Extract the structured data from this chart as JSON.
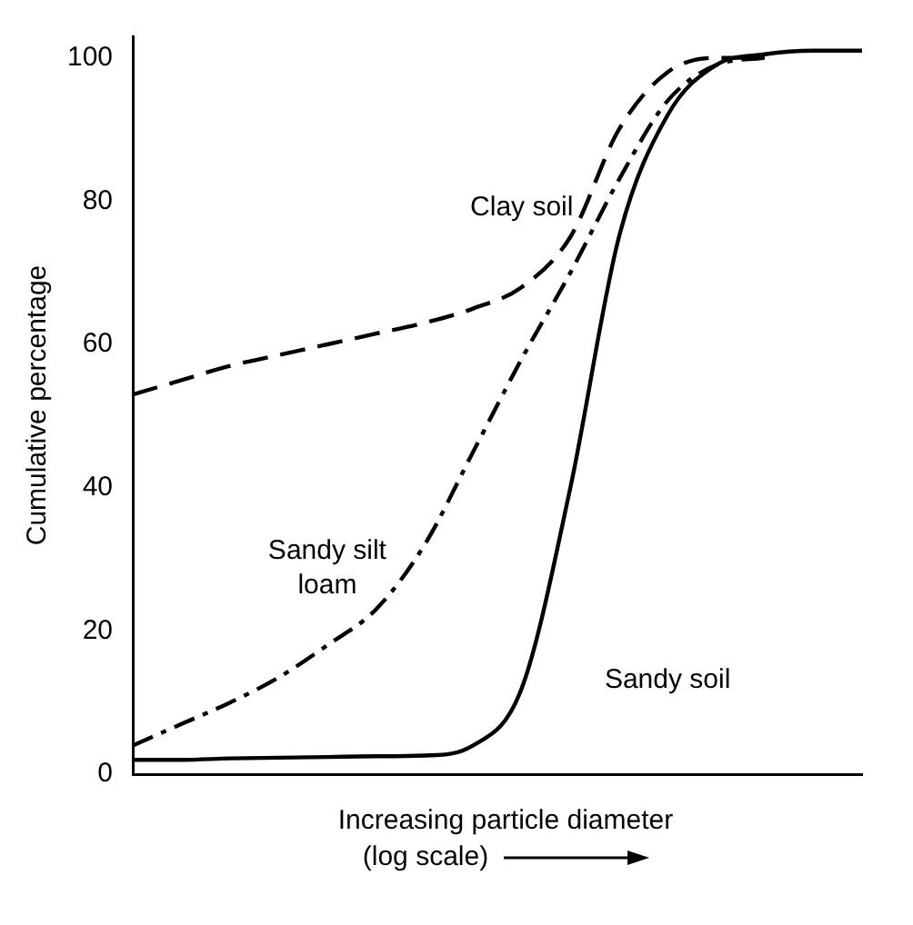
{
  "chart_data": {
    "type": "line",
    "ylabel": "Cumulative percentage",
    "xlabel": "Increasing particle diameter\n(log scale)",
    "categories": [
      null,
      null,
      null,
      null,
      null,
      null,
      null,
      null,
      null,
      null,
      null,
      null,
      null,
      null,
      null,
      null
    ],
    "series": [
      {
        "color": "#000000",
        "line_style": "dashed",
        "values": [
          53,
          55,
          57,
          58.5,
          60,
          61.5,
          63,
          65,
          68,
          75,
          90,
          98,
          100,
          100,
          null,
          null
        ]
      },
      {
        "color": "#000000",
        "line_style": "dashdot",
        "values": [
          4,
          7,
          10,
          13.5,
          18,
          23,
          32,
          45,
          58,
          70,
          83,
          94,
          99,
          100,
          null,
          null
        ]
      },
      {
        "color": "#000000",
        "line_style": "solid",
        "values": [
          2,
          2,
          2.2,
          2.3,
          2.4,
          2.5,
          2.6,
          4,
          12,
          40,
          75,
          92,
          99,
          100.5,
          101,
          101
        ]
      }
    ],
    "annotations": [
      "Clay soil",
      "Sandy silt\nloam",
      "Sandy soil"
    ],
    "ylim": [
      0,
      103
    ],
    "yticks": [
      0,
      20,
      40,
      60,
      80,
      100
    ],
    "grid": false,
    "legend": false,
    "marker": "none",
    "tick_labels": "y"
  }
}
